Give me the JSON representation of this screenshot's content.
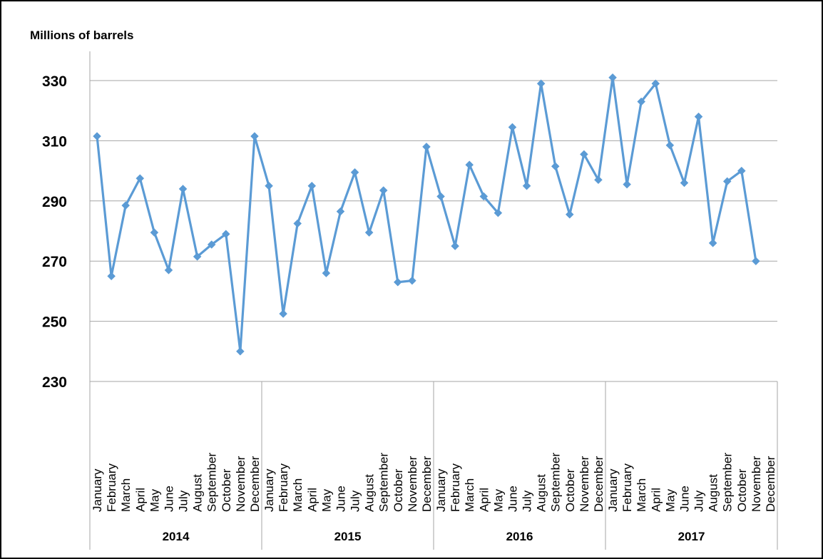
{
  "chart_data": {
    "type": "line",
    "ylabel": "Millions of barrels",
    "ylim": [
      230,
      330
    ],
    "yticks": [
      330,
      310,
      290,
      270,
      250,
      230
    ],
    "grid": "horizontal",
    "legend": "none",
    "color": "#5B9BD5",
    "years": [
      "2014",
      "2015",
      "2016",
      "2017"
    ],
    "months": [
      "January",
      "February",
      "March",
      "April",
      "May",
      "June",
      "July",
      "August",
      "September",
      "October",
      "November",
      "December"
    ],
    "series": [
      {
        "values": [
          311.5,
          265,
          288.5,
          297.5,
          279.5,
          267,
          294,
          271.5,
          275.5,
          279,
          240,
          311.5,
          295,
          252.5,
          282.5,
          295,
          266,
          286.5,
          299.5,
          279.5,
          293.5,
          263,
          263.5,
          308,
          291.5,
          275,
          302,
          291.5,
          286,
          314.5,
          295,
          329,
          301.5,
          285.5,
          305.5,
          297,
          331,
          295.5,
          323,
          329,
          308.5,
          296,
          318,
          276,
          296.5,
          300,
          270
        ]
      }
    ]
  }
}
